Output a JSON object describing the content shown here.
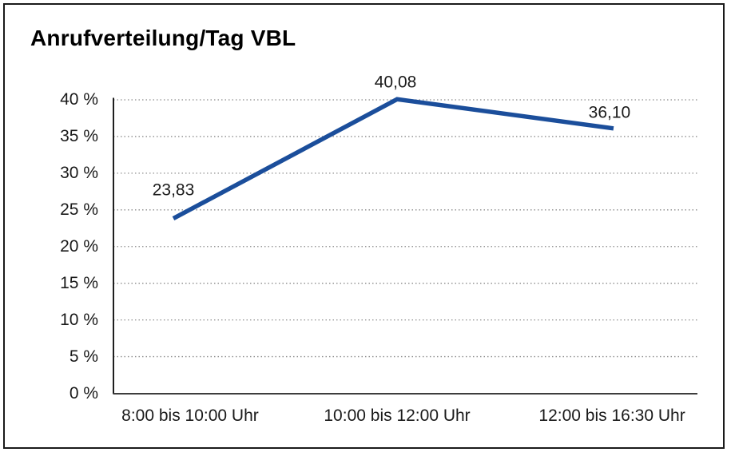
{
  "chart_data": {
    "type": "line",
    "title": "Anrufverteilung/Tag VBL",
    "categories": [
      "8:00 bis 10:00 Uhr",
      "10:00 bis 12:00 Uhr",
      "12:00 bis 16:30 Uhr"
    ],
    "values": [
      23.83,
      40.08,
      36.1
    ],
    "point_labels": [
      "23,83",
      "40,08",
      "36,10"
    ],
    "xlabel": "",
    "ylabel": "",
    "ylim": [
      0,
      40
    ],
    "ytick_step": 5,
    "ytick_labels": [
      "0 %",
      "5 %",
      "10 %",
      "15 %",
      "20 %",
      "25 %",
      "30 %",
      "35 %",
      "40 %"
    ],
    "grid": "horizontal-dotted",
    "legend_position": "none",
    "line_color": "#1b4e9b",
    "grid_color": "#8c8c8c",
    "axis_color": "#3d3d3d",
    "text_color": "#1a1a1a"
  }
}
